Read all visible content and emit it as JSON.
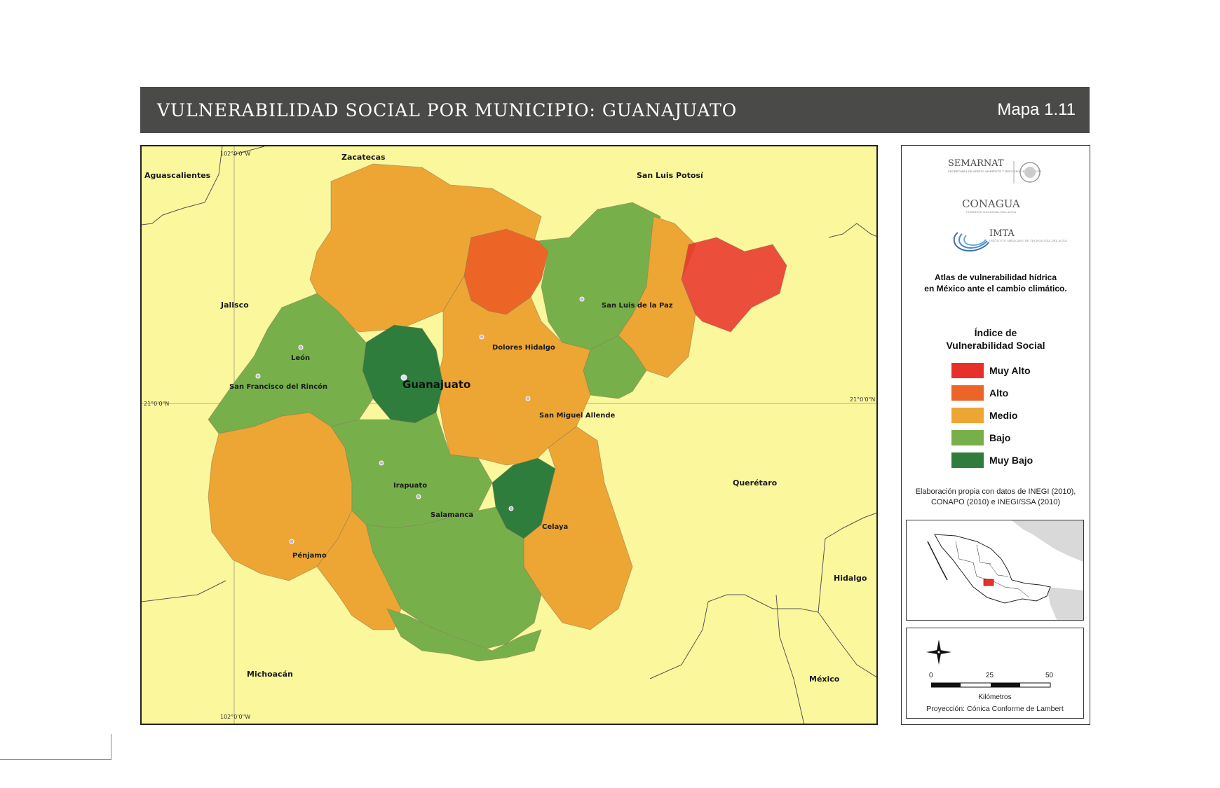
{
  "header": {
    "title": "VULNERABILIDAD SOCIAL POR MUNICIPIO: GUANAJUATO",
    "map_number": "Mapa 1.11"
  },
  "map": {
    "neighbors": [
      "Aguascalientes",
      "Zacatecas",
      "San Luis Potosí",
      "Jalisco",
      "Querétaro",
      "Hidalgo",
      "Michoacán",
      "México"
    ],
    "cities": [
      "León",
      "San Francisco del Rincón",
      "Guanajuato",
      "Dolores Hidalgo",
      "San Luis de la Paz",
      "San Miguel Allende",
      "Irapuato",
      "Salamanca",
      "Celaya",
      "Pénjamo"
    ],
    "coordinates": [
      "102°0'0\"W",
      "102°0'0\"W",
      "21°0'0\"N",
      "21°0'0\"N"
    ],
    "class_colors": {
      "muy_alto": "#e8302a",
      "alto": "#ec6527",
      "medio": "#eda534",
      "bajo": "#77b04a",
      "muy_bajo": "#2e7d3c"
    }
  },
  "panel": {
    "logos": [
      {
        "name": "SEMARNAT",
        "sub": "SECRETARÍA DE MEDIO AMBIENTE Y RECURSOS NATURALES"
      },
      {
        "name": "CONAGUA",
        "sub": "COMISIÓN NACIONAL DEL AGUA"
      },
      {
        "name": "IMTA",
        "sub": "INSTITUTO MEXICANO DE TECNOLOGÍA DEL AGUA"
      }
    ],
    "atlas_title": [
      "Atlas de vulnerabilidad hídrica",
      "en México ante el cambio climático."
    ],
    "legend_title": [
      "Índice de",
      "Vulnerabilidad Social"
    ],
    "legend": [
      {
        "label": "Muy Alto",
        "color": "#e8302a"
      },
      {
        "label": "Alto",
        "color": "#ec6527"
      },
      {
        "label": "Medio",
        "color": "#eda534"
      },
      {
        "label": "Bajo",
        "color": "#77b04a"
      },
      {
        "label": "Muy Bajo",
        "color": "#2e7d3c"
      }
    ],
    "source": [
      "Elaboración propia con datos de INEGI (2010),",
      "CONAPO (2010) e INEGI/SSA (2010)"
    ],
    "scale": {
      "ticks": [
        "0",
        "25",
        "50"
      ],
      "units": "Kilómetros",
      "projection": "Proyección: Cónica Conforme de Lambert"
    }
  }
}
